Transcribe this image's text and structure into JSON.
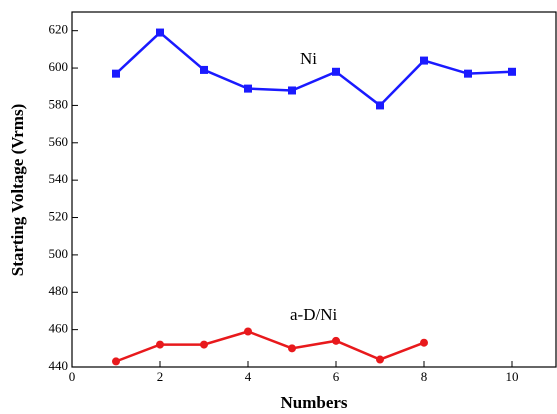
{
  "chart_data": {
    "type": "line",
    "x_label": "Numbers",
    "y_label": "Starting Voltage (Vrms)",
    "xlim": [
      0,
      11
    ],
    "ylim": [
      440,
      630
    ],
    "xticks": [
      0,
      2,
      4,
      6,
      8,
      10
    ],
    "yticks": [
      440,
      460,
      480,
      500,
      520,
      540,
      560,
      580,
      600,
      620
    ],
    "series": [
      {
        "name": "Ni",
        "color": "#1a1aff",
        "marker": "square",
        "x": [
          1,
          2,
          3,
          4,
          5,
          6,
          7,
          8,
          9,
          10
        ],
        "values": [
          597,
          619,
          599,
          589,
          588,
          598,
          580,
          604,
          597,
          598
        ]
      },
      {
        "name": "a-D/Ni",
        "color": "#e8191c",
        "marker": "circle",
        "x": [
          1,
          2,
          3,
          4,
          5,
          6,
          7,
          8
        ],
        "values": [
          443,
          452,
          452,
          459,
          450,
          454,
          444,
          453
        ]
      }
    ]
  }
}
